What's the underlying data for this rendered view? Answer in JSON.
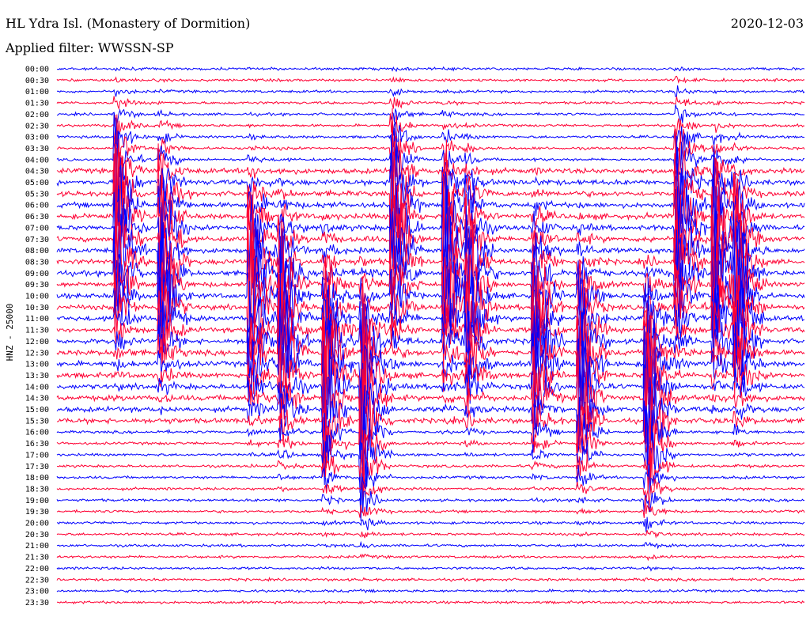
{
  "header": {
    "station": "HL Ydra Isl. (Monastery of Dormition)",
    "filter": "Applied filter: WWSSN-SP",
    "date": "2020-12-03",
    "channel": "HNZ - 25000"
  },
  "colors": {
    "even_row": "#0000ff",
    "odd_row": "#ff0033",
    "text": "#000000"
  },
  "chart_data": {
    "type": "line",
    "subtype": "helicorder",
    "title": "HL Ydra Isl. (Monastery of Dormition)",
    "date": "2020-12-03",
    "ylabel": "HNZ - 25000",
    "row_labels": [
      "00:00",
      "00:30",
      "01:00",
      "01:30",
      "02:00",
      "02:30",
      "03:00",
      "03:30",
      "04:00",
      "04:30",
      "05:00",
      "05:30",
      "06:00",
      "06:30",
      "07:00",
      "07:30",
      "08:00",
      "08:30",
      "09:00",
      "09:30",
      "10:00",
      "10:30",
      "11:00",
      "11:30",
      "12:00",
      "12:30",
      "13:00",
      "13:30",
      "14:00",
      "14:30",
      "15:00",
      "15:30",
      "16:00",
      "16:30",
      "17:00",
      "17:30",
      "18:00",
      "18:30",
      "19:00",
      "19:30",
      "20:00",
      "20:30",
      "21:00",
      "21:30",
      "22:00",
      "22:30",
      "23:00",
      "23:30"
    ],
    "row_colors_alternate": [
      "blue",
      "red"
    ],
    "events_fraction_of_row": [
      0.08,
      0.14,
      0.26,
      0.3,
      0.36,
      0.41,
      0.45,
      0.52,
      0.55,
      0.64,
      0.7,
      0.79,
      0.83,
      0.88,
      0.91
    ],
    "grid": false
  }
}
